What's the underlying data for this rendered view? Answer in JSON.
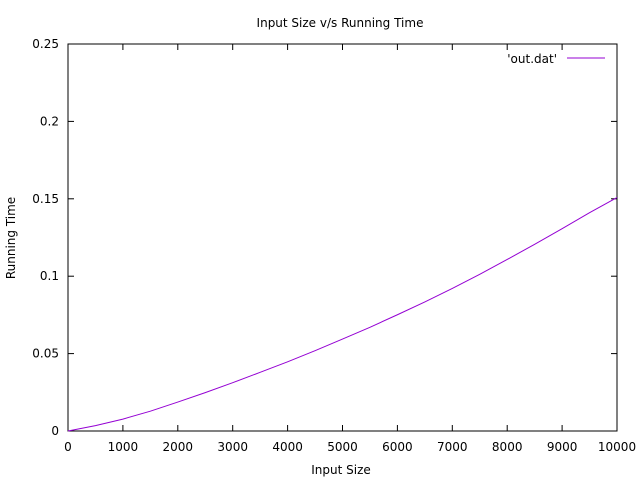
{
  "chart_data": {
    "type": "line",
    "title": "Input Size v/s Running Time",
    "xlabel": "Input Size",
    "ylabel": "Running Time",
    "xlim": [
      0,
      10000
    ],
    "ylim": [
      0,
      0.25
    ],
    "xticks": [
      0,
      1000,
      2000,
      3000,
      4000,
      5000,
      6000,
      7000,
      8000,
      9000,
      10000
    ],
    "yticks": [
      0,
      0.05,
      0.1,
      0.15,
      0.2,
      0.25
    ],
    "xtick_labels": [
      "0",
      "1000",
      "2000",
      "3000",
      "4000",
      "5000",
      "6000",
      "7000",
      "8000",
      "9000",
      "10000"
    ],
    "ytick_labels": [
      "0",
      "0.05",
      "0.1",
      "0.15",
      "0.2",
      "0.25"
    ],
    "grid": false,
    "legend_position": "top-right",
    "series": [
      {
        "name": "'out.dat'",
        "color": "#9400d3",
        "x": [
          0,
          500,
          1000,
          1500,
          2000,
          2500,
          3000,
          3500,
          4000,
          4500,
          5000,
          5500,
          6000,
          6500,
          7000,
          7500,
          8000,
          8500,
          9000,
          9500,
          10000
        ],
        "y": [
          0,
          0.0035,
          0.0077,
          0.0128,
          0.0187,
          0.0248,
          0.0312,
          0.0379,
          0.0447,
          0.0519,
          0.0594,
          0.067,
          0.0751,
          0.0834,
          0.0921,
          0.1012,
          0.1108,
          0.1206,
          0.1307,
          0.141,
          0.1508
        ]
      }
    ]
  }
}
